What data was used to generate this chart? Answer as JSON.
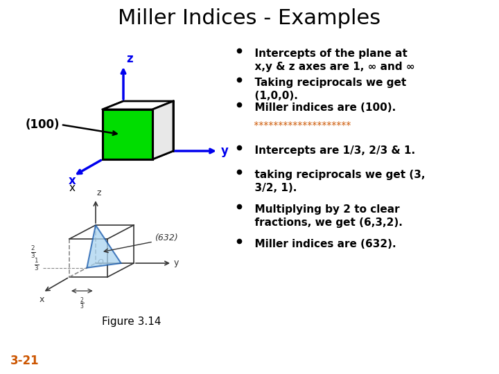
{
  "title": "Miller Indices - Examples",
  "title_fontsize": 22,
  "background_color": "#ffffff",
  "star_color": "#cc5500",
  "slide_number_color": "#cc5500",
  "slide_number": "3-21",
  "figure_label": "Figure 3.14",
  "bullet_points_top": [
    "  Intercepts of the plane at\n  x,y & z axes are 1, ∞ and ∞",
    "  Taking reciprocals we get\n  (1,0,0).",
    "  Miller indices are (100)."
  ],
  "stars": " ********************",
  "bullet_points_bottom": [
    "  Intercepts are 1/3, 2/3 & 1.",
    "  taking reciprocals we get (3,\n  3/2, 1).",
    "  Multiplying by 2 to clear\n  fractions, we get (6,3,2).",
    "  Miller indices are (632)."
  ],
  "cube_label": "(100)",
  "cube_color_face": "#00dd00",
  "cube_color_edge": "#000000",
  "axis_blue": "#0000ee"
}
